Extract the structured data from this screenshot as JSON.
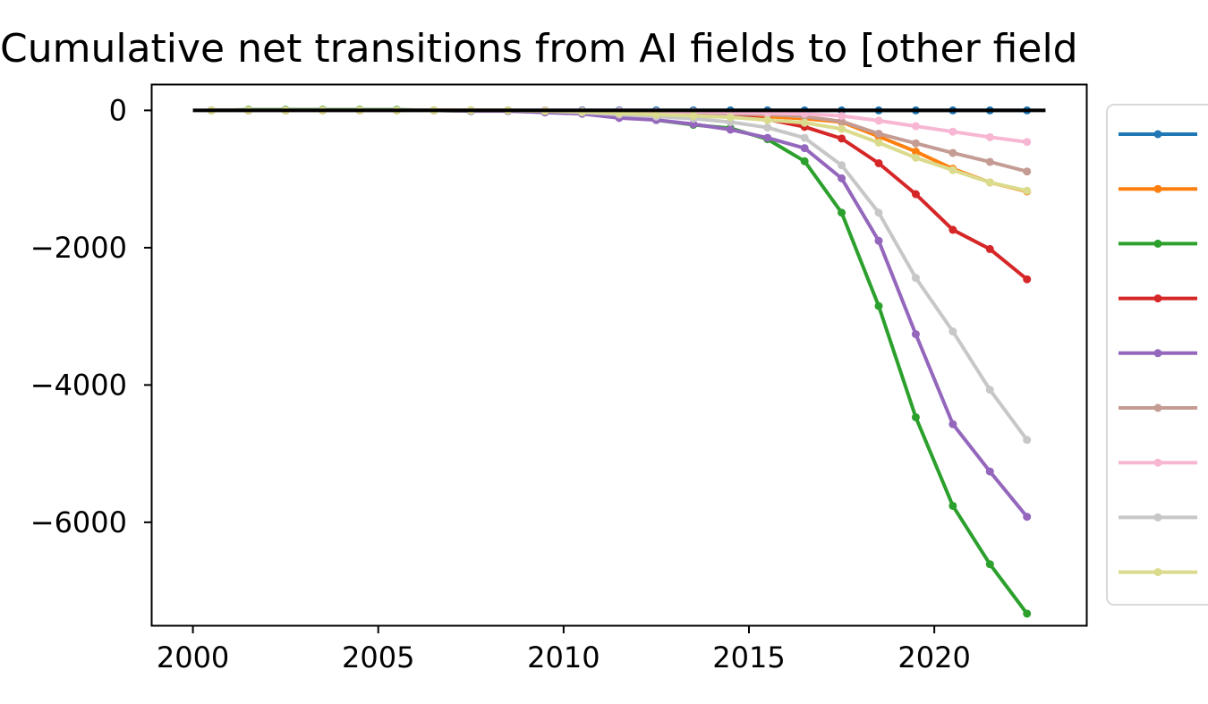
{
  "chart_data": {
    "type": "line",
    "title": "Cumulative net transitions from AI fields to [other field",
    "xlabel": "",
    "ylabel": "",
    "xlim": [
      1998.9,
      2024.1
    ],
    "ylim": [
      -7500,
      370
    ],
    "x_ticks": [
      2000,
      2005,
      2010,
      2015,
      2020
    ],
    "y_ticks": [
      0,
      -2000,
      -4000,
      -6000
    ],
    "x_tick_labels": [
      "2000",
      "2005",
      "2010",
      "2015",
      "2020"
    ],
    "y_tick_labels": [
      "0",
      "−2000",
      "−4000",
      "−6000"
    ],
    "grid": false,
    "legend_placement": "right, outside plot (cropped)",
    "reference_line": {
      "y": 0,
      "x_range": [
        2000,
        2023
      ],
      "color": "#000000"
    },
    "x": [
      2000.5,
      2001.5,
      2002.5,
      2003.5,
      2004.5,
      2005.5,
      2006.5,
      2007.5,
      2008.5,
      2009.5,
      2010.5,
      2011.5,
      2012.5,
      2013.5,
      2014.5,
      2015.5,
      2016.5,
      2017.5,
      2018.5,
      2019.5,
      2020.5,
      2021.5,
      2022.5
    ],
    "series": [
      {
        "color": "#1f77b4",
        "values": [
          0,
          0,
          0,
          0,
          0,
          0,
          0,
          0,
          0,
          0,
          0,
          0,
          0,
          0,
          0,
          0,
          0,
          0,
          0,
          0,
          0,
          0,
          0
        ]
      },
      {
        "color": "#ff7f0e",
        "values": [
          0,
          0,
          0,
          0,
          0,
          0,
          0,
          0,
          0,
          -10,
          -20,
          -30,
          -40,
          -50,
          -70,
          -90,
          -120,
          -170,
          -380,
          -600,
          -850,
          -1050,
          -1180
        ]
      },
      {
        "color": "#2ca02c",
        "values": [
          0,
          10,
          10,
          10,
          10,
          10,
          0,
          -10,
          0,
          -20,
          -40,
          -80,
          -140,
          -210,
          -260,
          -420,
          -740,
          -1490,
          -2850,
          -4470,
          -5760,
          -6610,
          -7330
        ]
      },
      {
        "color": "#d62728",
        "values": [
          0,
          0,
          0,
          0,
          0,
          0,
          0,
          0,
          0,
          -10,
          -20,
          -30,
          -40,
          -60,
          -80,
          -130,
          -240,
          -410,
          -770,
          -1220,
          -1740,
          -2020,
          -2460
        ]
      },
      {
        "color": "#9467bd",
        "values": [
          0,
          0,
          0,
          0,
          0,
          0,
          0,
          -10,
          -10,
          -30,
          -50,
          -110,
          -140,
          -200,
          -280,
          -400,
          -550,
          -990,
          -1900,
          -3260,
          -4570,
          -5260,
          -5920
        ]
      },
      {
        "color": "#c49c94",
        "values": [
          0,
          0,
          0,
          0,
          0,
          0,
          0,
          0,
          0,
          -10,
          -10,
          -20,
          -30,
          -40,
          -50,
          -60,
          -90,
          -160,
          -340,
          -480,
          -620,
          -750,
          -890
        ]
      },
      {
        "color": "#f7b6d2",
        "values": [
          0,
          0,
          0,
          0,
          0,
          0,
          0,
          0,
          0,
          0,
          -10,
          -10,
          -20,
          -20,
          -30,
          -40,
          -50,
          -80,
          -150,
          -230,
          -310,
          -390,
          -460
        ]
      },
      {
        "color": "#c7c7c7",
        "values": [
          0,
          0,
          0,
          0,
          0,
          0,
          0,
          0,
          0,
          -10,
          -30,
          -60,
          -90,
          -120,
          -170,
          -250,
          -400,
          -800,
          -1490,
          -2440,
          -3220,
          -4070,
          -4800
        ]
      },
      {
        "color": "#dbdb8d",
        "values": [
          0,
          0,
          0,
          0,
          0,
          0,
          0,
          0,
          0,
          -10,
          -20,
          -40,
          -60,
          -80,
          -100,
          -140,
          -180,
          -270,
          -470,
          -690,
          -870,
          -1050,
          -1170
        ]
      }
    ]
  }
}
